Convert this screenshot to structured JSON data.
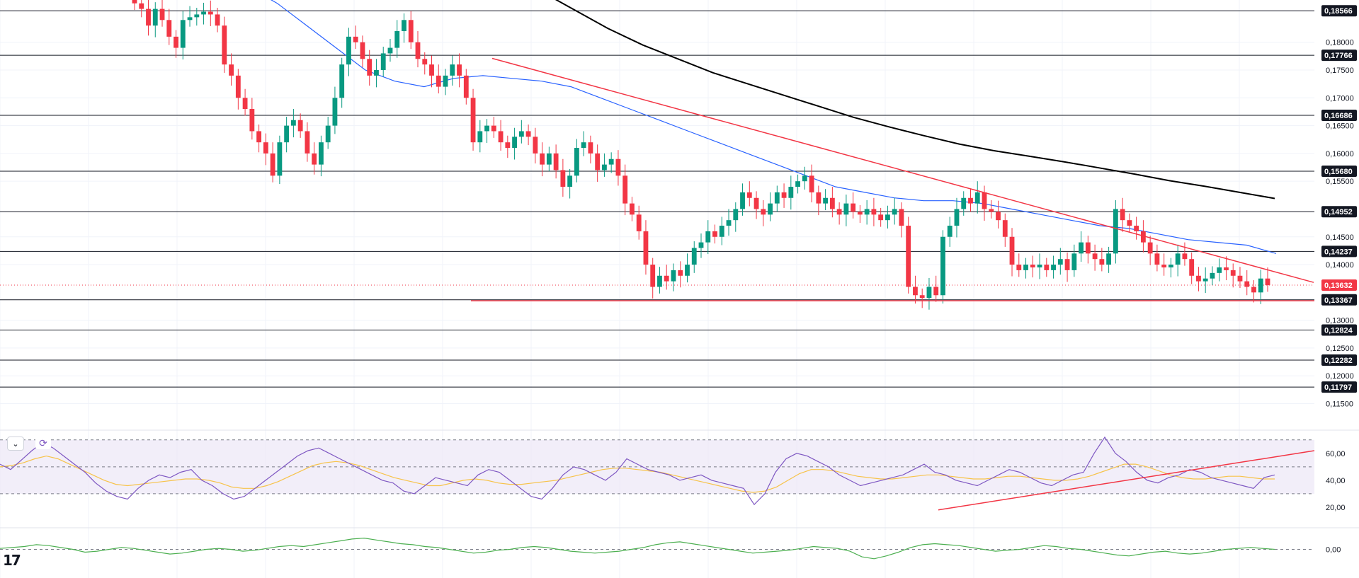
{
  "chart_data": [
    {
      "type": "candlestick",
      "title": "",
      "y_axis_ticks": [
        "0,18000",
        "0,17500",
        "0,17000",
        "0,16500",
        "0,16000",
        "0,15500",
        "0,14500",
        "0,14000",
        "0,13000",
        "0,12500",
        "0,12000",
        "0,11500"
      ],
      "ylim": [
        0.1115,
        0.1876
      ],
      "horizontal_levels": [
        "0,18566",
        "0,17766",
        "0,16686",
        "0,15680",
        "0,14952",
        "0,14237",
        "0,13367",
        "0,12824",
        "0,12282",
        "0,11797"
      ],
      "current_price": "0,13632",
      "colors": {
        "up": "#089981",
        "down": "#f23645",
        "ma_fast": "#2962ff",
        "ma_slow": "#000000",
        "trendline": "#f23645"
      },
      "close": [
        0.187,
        0.186,
        0.183,
        0.186,
        0.184,
        0.181,
        0.179,
        0.184,
        0.1845,
        0.185,
        0.1855,
        0.185,
        0.183,
        0.176,
        0.174,
        0.17,
        0.168,
        0.164,
        0.162,
        0.16,
        0.156,
        0.162,
        0.165,
        0.166,
        0.164,
        0.16,
        0.158,
        0.162,
        0.165,
        0.17,
        0.176,
        0.181,
        0.18,
        0.177,
        0.174,
        0.175,
        0.178,
        0.179,
        0.182,
        0.184,
        0.18,
        0.177,
        0.176,
        0.174,
        0.172,
        0.174,
        0.176,
        0.174,
        0.17,
        0.162,
        0.164,
        0.165,
        0.164,
        0.162,
        0.161,
        0.163,
        0.164,
        0.163,
        0.16,
        0.158,
        0.16,
        0.157,
        0.154,
        0.156,
        0.161,
        0.162,
        0.16,
        0.157,
        0.158,
        0.159,
        0.156,
        0.151,
        0.149,
        0.146,
        0.14,
        0.136,
        0.138,
        0.137,
        0.139,
        0.138,
        0.14,
        0.143,
        0.144,
        0.146,
        0.145,
        0.147,
        0.148,
        0.15,
        0.153,
        0.152,
        0.15,
        0.149,
        0.151,
        0.153,
        0.152,
        0.154,
        0.155,
        0.156,
        0.153,
        0.151,
        0.152,
        0.15,
        0.149,
        0.151,
        0.1495,
        0.149,
        0.15,
        0.149,
        0.148,
        0.149,
        0.15,
        0.147,
        0.136,
        0.1345,
        0.134,
        0.136,
        0.1345,
        0.145,
        0.147,
        0.15,
        0.152,
        0.151,
        0.153,
        0.15,
        0.1495,
        0.148,
        0.145,
        0.14,
        0.139,
        0.14,
        0.1395,
        0.14,
        0.139,
        0.14,
        0.141,
        0.139,
        0.142,
        0.144,
        0.142,
        0.141,
        0.14,
        0.142,
        0.15,
        0.148,
        0.147,
        0.146,
        0.144,
        0.142,
        0.14,
        0.1395,
        0.14,
        0.142,
        0.141,
        0.138,
        0.137,
        0.1375,
        0.1385,
        0.1395,
        0.139,
        0.138,
        0.137,
        0.136,
        0.135,
        0.1375,
        0.1363
      ],
      "ma_fast": [
        0.19,
        0.187,
        0.183,
        0.179,
        0.175,
        0.173,
        0.172,
        0.1735,
        0.174,
        0.1735,
        0.173,
        0.172,
        0.17,
        0.168,
        0.166,
        0.164,
        0.162,
        0.16,
        0.158,
        0.156,
        0.154,
        0.153,
        0.152,
        0.1515,
        0.1515,
        0.151,
        0.15,
        0.149,
        0.148,
        0.147,
        0.1465,
        0.1455,
        0.1445,
        0.144,
        0.1435,
        0.142
      ],
      "ma_slow": [
        0.1965,
        0.193,
        0.1895,
        0.186,
        0.1825,
        0.1795,
        0.177,
        0.1745,
        0.1725,
        0.1705,
        0.1685,
        0.1665,
        0.1648,
        0.1632,
        0.1617,
        0.1605,
        0.1595,
        0.1585,
        0.1574,
        0.1563,
        0.1551,
        0.1541,
        0.153,
        0.1519
      ],
      "trendlines": [
        {
          "from": [
            0.1771,
            0.1771
          ],
          "to": [
            0.1368,
            0.1368
          ]
        },
        {
          "from": [
            0.1335,
            0.1335
          ],
          "to": [
            0.1335,
            0.1335
          ]
        }
      ]
    },
    {
      "type": "line",
      "title": "",
      "y_axis_ticks": [
        "60,00",
        "40,00",
        "20,00"
      ],
      "ylim": [
        10,
        72
      ],
      "band": [
        30,
        70
      ],
      "midline": 50,
      "colors": {
        "line": "#7e57c2",
        "signal": "#f7c34a",
        "band": "#ede7f6",
        "trendline": "#f23645"
      },
      "values": [
        52,
        48,
        55,
        62,
        68,
        64,
        58,
        52,
        46,
        38,
        32,
        28,
        26,
        34,
        40,
        44,
        42,
        46,
        48,
        40,
        36,
        30,
        26,
        28,
        34,
        40,
        46,
        52,
        58,
        62,
        64,
        60,
        56,
        52,
        48,
        44,
        40,
        38,
        32,
        30,
        36,
        42,
        40,
        38,
        36,
        44,
        48,
        46,
        40,
        34,
        28,
        26,
        34,
        44,
        50,
        48,
        44,
        40,
        46,
        56,
        52,
        48,
        46,
        44,
        40,
        42,
        44,
        40,
        38,
        36,
        34,
        22,
        30,
        46,
        56,
        60,
        58,
        54,
        50,
        44,
        40,
        36,
        38,
        40,
        42,
        44,
        48,
        52,
        46,
        44,
        40,
        38,
        36,
        40,
        44,
        48,
        46,
        42,
        38,
        36,
        40,
        44,
        46,
        60,
        72,
        60,
        54,
        46,
        40,
        38,
        42,
        44,
        48,
        46,
        42,
        40,
        38,
        36,
        34,
        42,
        44
      ],
      "signal": [
        50,
        51,
        53,
        56,
        58,
        56,
        52,
        48,
        44,
        40,
        37,
        36,
        37,
        38,
        39,
        40,
        41,
        41,
        40,
        38,
        35,
        34,
        34,
        36,
        39,
        43,
        47,
        51,
        53,
        54,
        53,
        51,
        48,
        45,
        42,
        40,
        38,
        36,
        36,
        38,
        40,
        41,
        40,
        38,
        37,
        37,
        38,
        39,
        40,
        42,
        44,
        46,
        48,
        49,
        49,
        48,
        47,
        46,
        44,
        42,
        40,
        38,
        36,
        34,
        32,
        31,
        32,
        35,
        40,
        45,
        48,
        48,
        47,
        45,
        43,
        42,
        41,
        41,
        42,
        43,
        44,
        44,
        43,
        42,
        41,
        41,
        42,
        43,
        43,
        42,
        41,
        40,
        40,
        41,
        43,
        46,
        49,
        52,
        52,
        50,
        47,
        44,
        42,
        41,
        41,
        42,
        43,
        43,
        42,
        41,
        41
      ],
      "trendlines": [
        {
          "from": [
            18,
            18
          ],
          "to": [
            62,
            62
          ]
        }
      ]
    },
    {
      "type": "line",
      "title": "",
      "y_axis_ticks": [
        "0,00"
      ],
      "ylim": [
        -2,
        2
      ],
      "colors": {
        "line": "#4caf50"
      },
      "values": [
        0.1,
        0.2,
        0.3,
        0.5,
        0.4,
        0.2,
        0,
        -0.3,
        -0.2,
        0,
        0.2,
        0.1,
        -0.1,
        -0.3,
        -0.5,
        -0.4,
        -0.2,
        0,
        0.1,
        0,
        -0.2,
        -0.1,
        0.1,
        0.3,
        0.4,
        0.3,
        0.5,
        0.7,
        0.9,
        1.1,
        1.2,
        1.0,
        0.8,
        0.6,
        0.5,
        0.3,
        0.2,
        0,
        -0.2,
        -0.4,
        -0.3,
        -0.1,
        0,
        0.2,
        0.3,
        0.2,
        0,
        -0.2,
        -0.3,
        -0.4,
        -0.3,
        -0.2,
        0,
        0.2,
        0.5,
        0.7,
        0.8,
        0.6,
        0.4,
        0.2,
        0,
        -0.2,
        -0.4,
        -0.3,
        -0.2,
        -0.1,
        0.1,
        0.3,
        0.2,
        0.1,
        -0.2,
        -0.8,
        -1.0,
        -0.7,
        -0.3,
        0.2,
        0.5,
        0.6,
        0.5,
        0.4,
        0.2,
        0,
        -0.2,
        -0.1,
        0,
        0.2,
        0.4,
        0.3,
        0.1,
        0,
        -0.2,
        -0.4,
        -0.6,
        -0.7,
        -0.5,
        -0.3,
        -0.2,
        -0.4,
        -0.5,
        -0.4,
        -0.2,
        0,
        0.1,
        0.2,
        0.1,
        0
      ]
    }
  ]
}
